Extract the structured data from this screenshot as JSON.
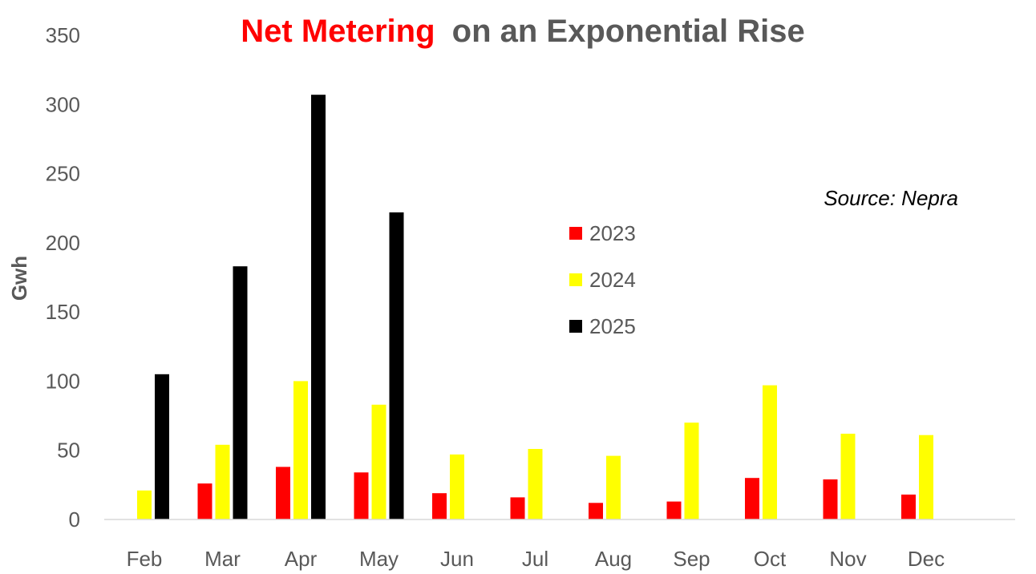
{
  "chart_data": {
    "type": "bar",
    "title_highlight": "Net Metering",
    "title_rest": "on an Exponential Rise",
    "ylabel": "Gwh",
    "annotation": "Source: Nepra",
    "categories": [
      "Feb",
      "Mar",
      "Apr",
      "May",
      "Jun",
      "Jul",
      "Aug",
      "Sep",
      "Oct",
      "Nov",
      "Dec"
    ],
    "series": [
      {
        "name": "2023",
        "color": "#ff0000",
        "values": [
          null,
          26,
          38,
          34,
          19,
          16,
          12,
          13,
          30,
          29,
          18
        ]
      },
      {
        "name": "2024",
        "color": "#ffff00",
        "values": [
          21,
          54,
          100,
          83,
          47,
          51,
          46,
          70,
          97,
          62,
          61
        ]
      },
      {
        "name": "2025",
        "color": "#000000",
        "values": [
          105,
          183,
          307,
          222,
          null,
          null,
          null,
          null,
          null,
          null,
          null
        ]
      }
    ],
    "ylim": [
      0,
      350
    ],
    "yticks": [
      0,
      50,
      100,
      150,
      200,
      250,
      300,
      350
    ],
    "grid": false,
    "legend_position": "center-right",
    "colors": {
      "title_highlight": "#ff0000",
      "title_rest": "#595959",
      "axis": "#d9d9d9",
      "text": "#595959"
    }
  }
}
